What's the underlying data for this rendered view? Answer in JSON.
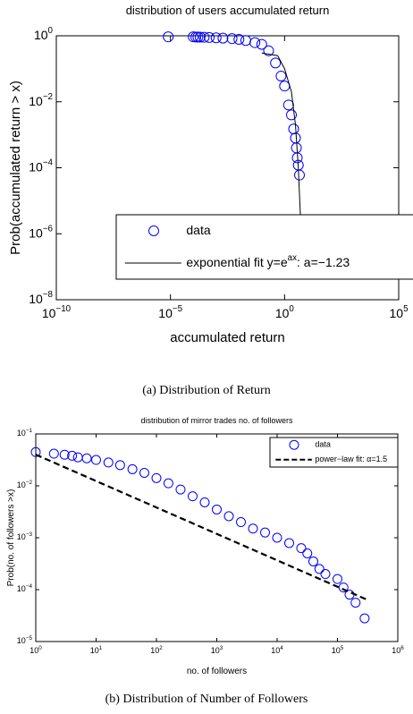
{
  "chart_data": [
    {
      "type": "scatter",
      "title": "distribution of users accumulated return",
      "x_label": "accumulated return",
      "y_label": "Prob(accumulated return > x)",
      "log_x": true,
      "log_y": true,
      "grid": false,
      "legend": "lower right",
      "xlim": [
        1e-10,
        100000
      ],
      "ylim": [
        1e-08,
        1
      ],
      "xticks": [
        {
          "value": 1e-10,
          "label": "10^{−10}"
        },
        {
          "value": 1e-05,
          "label": "10^{−5}"
        },
        {
          "value": 1,
          "label": "10^{0}"
        },
        {
          "value": 100000,
          "label": "10^{5}"
        }
      ],
      "yticks": [
        {
          "value": 1e-08,
          "label": "10^{−8}"
        },
        {
          "value": 1e-06,
          "label": "10^{−6}"
        },
        {
          "value": 0.0001,
          "label": "10^{−4}"
        },
        {
          "value": 0.01,
          "label": "10^{−2}"
        },
        {
          "value": 1,
          "label": "10^{0}"
        }
      ],
      "series": [
        {
          "name": "data",
          "color": "#0000ff",
          "style": "circle",
          "x": [
            8e-06,
            0.0001,
            0.00013,
            0.00016,
            0.0002,
            0.0003,
            0.0005,
            0.001,
            0.002,
            0.005,
            0.01,
            0.02,
            0.05,
            0.1,
            0.2,
            0.4,
            0.7,
            1,
            1.5,
            2,
            2.5,
            3,
            3.3,
            3.6,
            4,
            4.5
          ],
          "values": [
            0.93,
            0.93,
            0.92,
            0.92,
            0.91,
            0.9,
            0.89,
            0.87,
            0.85,
            0.82,
            0.78,
            0.72,
            0.62,
            0.55,
            0.35,
            0.15,
            0.06,
            0.03,
            0.008,
            0.004,
            0.0015,
            0.0008,
            0.0004,
            0.0002,
            0.00012,
            6e-05
          ]
        },
        {
          "name": "exponential fit y=e^{ax}: a=−1.23",
          "color": "#000000",
          "style": "line",
          "x": [
            0.1,
            0.5,
            1,
            2,
            3,
            4,
            5
          ],
          "values": [
            0.3,
            0.25,
            0.1,
            0.02,
            0.002,
            0.0001,
            3e-06
          ]
        }
      ]
    },
    {
      "type": "scatter",
      "title": "distribution of mirror trades no. of followers",
      "x_label": "no. of followers",
      "y_label": "Prob(no. of followers >x)",
      "log_x": true,
      "log_y": true,
      "grid": false,
      "legend": "upper right",
      "xlim": [
        1,
        1000000
      ],
      "ylim": [
        1e-05,
        0.1
      ],
      "xticks": [
        {
          "value": 1,
          "label": "10^{0}"
        },
        {
          "value": 10,
          "label": "10^{1}"
        },
        {
          "value": 100,
          "label": "10^{2}"
        },
        {
          "value": 1000,
          "label": "10^{3}"
        },
        {
          "value": 10000,
          "label": "10^{4}"
        },
        {
          "value": 100000,
          "label": "10^{5}"
        },
        {
          "value": 1000000,
          "label": "10^{6}"
        }
      ],
      "yticks": [
        {
          "value": 1e-05,
          "label": "10^{−5}"
        },
        {
          "value": 0.0001,
          "label": "10^{−4}"
        },
        {
          "value": 0.001,
          "label": "10^{−3}"
        },
        {
          "value": 0.01,
          "label": "10^{−2}"
        },
        {
          "value": 0.1,
          "label": "10^{−1}"
        }
      ],
      "series": [
        {
          "name": "data",
          "color": "#0000ff",
          "style": "circle",
          "x": [
            1,
            2,
            3,
            4,
            5,
            7,
            10,
            16,
            25,
            40,
            63,
            100,
            158,
            251,
            398,
            631,
            1000,
            1585,
            2512,
            3981,
            6310,
            10000,
            15850,
            25120,
            31620,
            39810,
            50120,
            63100,
            100000,
            125900,
            158500,
            199500,
            281800
          ],
          "values": [
            0.0447,
            0.0417,
            0.0398,
            0.038,
            0.0355,
            0.0339,
            0.0316,
            0.0282,
            0.0251,
            0.0209,
            0.0178,
            0.0141,
            0.0112,
            0.0085,
            0.0063,
            0.0048,
            0.0035,
            0.0026,
            0.002,
            0.0015,
            0.00126,
            0.001,
            0.00079,
            0.00063,
            0.0005,
            0.00035,
            0.00025,
            0.0002,
            0.00016,
            0.00011,
            8e-05,
            5.6e-05,
            2.8e-05
          ]
        },
        {
          "name": "power−law fit: α=1.5",
          "color": "#000000",
          "style": "dashed",
          "x": [
            1,
            300000
          ],
          "values": [
            0.04,
            6.5e-05
          ]
        }
      ]
    }
  ],
  "captions": [
    "(a) Distribution of Return",
    "(b) Distribution of Number of Followers"
  ]
}
